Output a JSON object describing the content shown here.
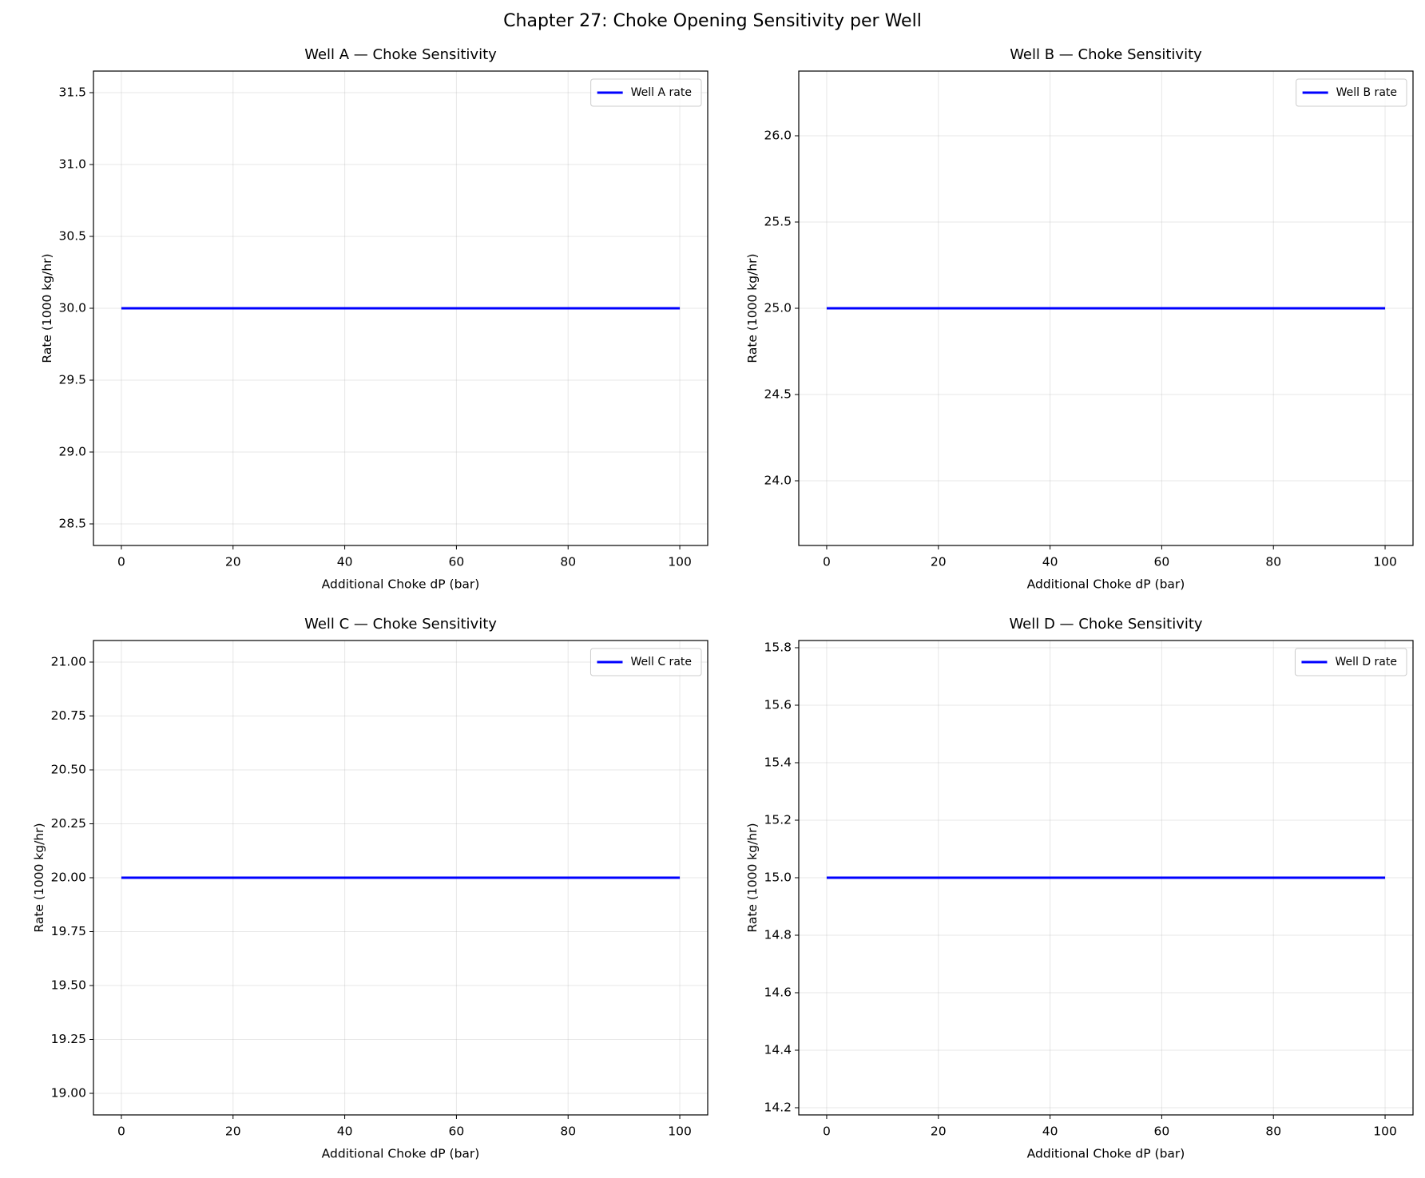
{
  "title": "Chapter 27: Choke Opening Sensitivity per Well",
  "chart_data": [
    {
      "type": "line",
      "title": "Well A — Choke Sensitivity",
      "x_label": "Additional Choke dP (bar)",
      "y_label": "Rate (1000 kg/hr)",
      "x": [
        0,
        10,
        20,
        30,
        40,
        50,
        60,
        70,
        80,
        90,
        100
      ],
      "series": [
        {
          "name": "Well A rate",
          "color": "#0000ff",
          "values": [
            30,
            30,
            30,
            30,
            30,
            30,
            30,
            30,
            30,
            30,
            30
          ]
        }
      ],
      "xlim": [
        -5,
        105
      ],
      "xticks": [
        0,
        20,
        40,
        60,
        80,
        100
      ],
      "ylim": [
        28.35,
        31.65
      ],
      "yticks": [
        {
          "value": 28.5,
          "label": "28.5"
        },
        {
          "value": 29,
          "label": "29.0"
        },
        29.5,
        {
          "value": 30,
          "label": "30.0"
        },
        30.5,
        {
          "value": 31,
          "label": "31.0"
        },
        31.5
      ],
      "grid": true,
      "legend": "upper-right"
    },
    {
      "type": "line",
      "title": "Well B — Choke Sensitivity",
      "x_label": "Additional Choke dP (bar)",
      "y_label": "Rate (1000 kg/hr)",
      "x": [
        0,
        10,
        20,
        30,
        40,
        50,
        60,
        70,
        80,
        90,
        100
      ],
      "series": [
        {
          "name": "Well B rate",
          "color": "#0000ff",
          "values": [
            25,
            25,
            25,
            25,
            25,
            25,
            25,
            25,
            25,
            25,
            25
          ]
        }
      ],
      "xlim": [
        -5,
        105
      ],
      "xticks": [
        0,
        20,
        40,
        60,
        80,
        100
      ],
      "ylim": [
        23.625,
        26.375
      ],
      "yticks": [
        {
          "value": 24,
          "label": "24.0"
        },
        24.5,
        {
          "value": 25,
          "label": "25.0"
        },
        25.5,
        {
          "value": 26,
          "label": "26.0"
        }
      ],
      "grid": true,
      "legend": "upper-right"
    },
    {
      "type": "line",
      "title": "Well C — Choke Sensitivity",
      "x_label": "Additional Choke dP (bar)",
      "y_label": "Rate (1000 kg/hr)",
      "x": [
        0,
        10,
        20,
        30,
        40,
        50,
        60,
        70,
        80,
        90,
        100
      ],
      "series": [
        {
          "name": "Well C rate",
          "color": "#0000ff",
          "values": [
            20,
            20,
            20,
            20,
            20,
            20,
            20,
            20,
            20,
            20,
            20
          ]
        }
      ],
      "xlim": [
        -5,
        105
      ],
      "xticks": [
        0,
        20,
        40,
        60,
        80,
        100
      ],
      "ylim": [
        18.9,
        21.1
      ],
      "yticks": [
        {
          "value": 19,
          "label": "19.00"
        },
        19.25,
        {
          "value": 19.5,
          "label": "19.50"
        },
        19.75,
        {
          "value": 20,
          "label": "20.00"
        },
        20.25,
        {
          "value": 20.5,
          "label": "20.50"
        },
        20.75,
        {
          "value": 21,
          "label": "21.00"
        }
      ],
      "grid": true,
      "legend": "upper-right"
    },
    {
      "type": "line",
      "title": "Well D — Choke Sensitivity",
      "x_label": "Additional Choke dP (bar)",
      "y_label": "Rate (1000 kg/hr)",
      "x": [
        0,
        10,
        20,
        30,
        40,
        50,
        60,
        70,
        80,
        90,
        100
      ],
      "series": [
        {
          "name": "Well D rate",
          "color": "#0000ff",
          "values": [
            15,
            15,
            15,
            15,
            15,
            15,
            15,
            15,
            15,
            15,
            15
          ]
        }
      ],
      "xlim": [
        -5,
        105
      ],
      "xticks": [
        0,
        20,
        40,
        60,
        80,
        100
      ],
      "ylim": [
        14.175,
        15.825
      ],
      "yticks": [
        14.2,
        14.4,
        14.6,
        14.8,
        {
          "value": 15,
          "label": "15.0"
        },
        15.2,
        15.4,
        15.6,
        15.8
      ],
      "grid": true,
      "legend": "upper-right"
    }
  ]
}
